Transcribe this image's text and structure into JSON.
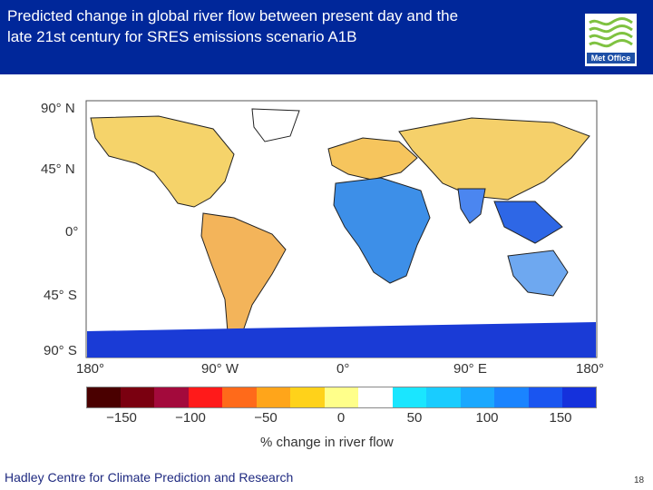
{
  "header": {
    "title_line1": "Predicted change in global river flow between present day and the",
    "title_line2": "late 21st century for SRES emissions scenario A1B",
    "logo_text": "Met Office"
  },
  "map": {
    "lat_labels": [
      "90° N",
      "45° N",
      "0°",
      "45° S",
      "90° S"
    ],
    "lon_labels": [
      "180°",
      "90° W",
      "0°",
      "90° E",
      "180°"
    ]
  },
  "legend": {
    "colors": [
      "#4a0000",
      "#7a0010",
      "#a30a3c",
      "#ff1a1a",
      "#ff6a1a",
      "#ffa51a",
      "#ffd21a",
      "#ffff8a",
      "#ffffff",
      "#1ae6ff",
      "#19ccff",
      "#1aa8ff",
      "#1a84ff",
      "#1a55f0",
      "#1531dc"
    ],
    "tick_labels": [
      "−150",
      "−100",
      "−50",
      "0",
      "50",
      "100",
      "150"
    ],
    "axis_label": "% change in river flow"
  },
  "footer": {
    "credit": "Hadley Centre for Climate Prediction and Research",
    "page_number": "18"
  }
}
